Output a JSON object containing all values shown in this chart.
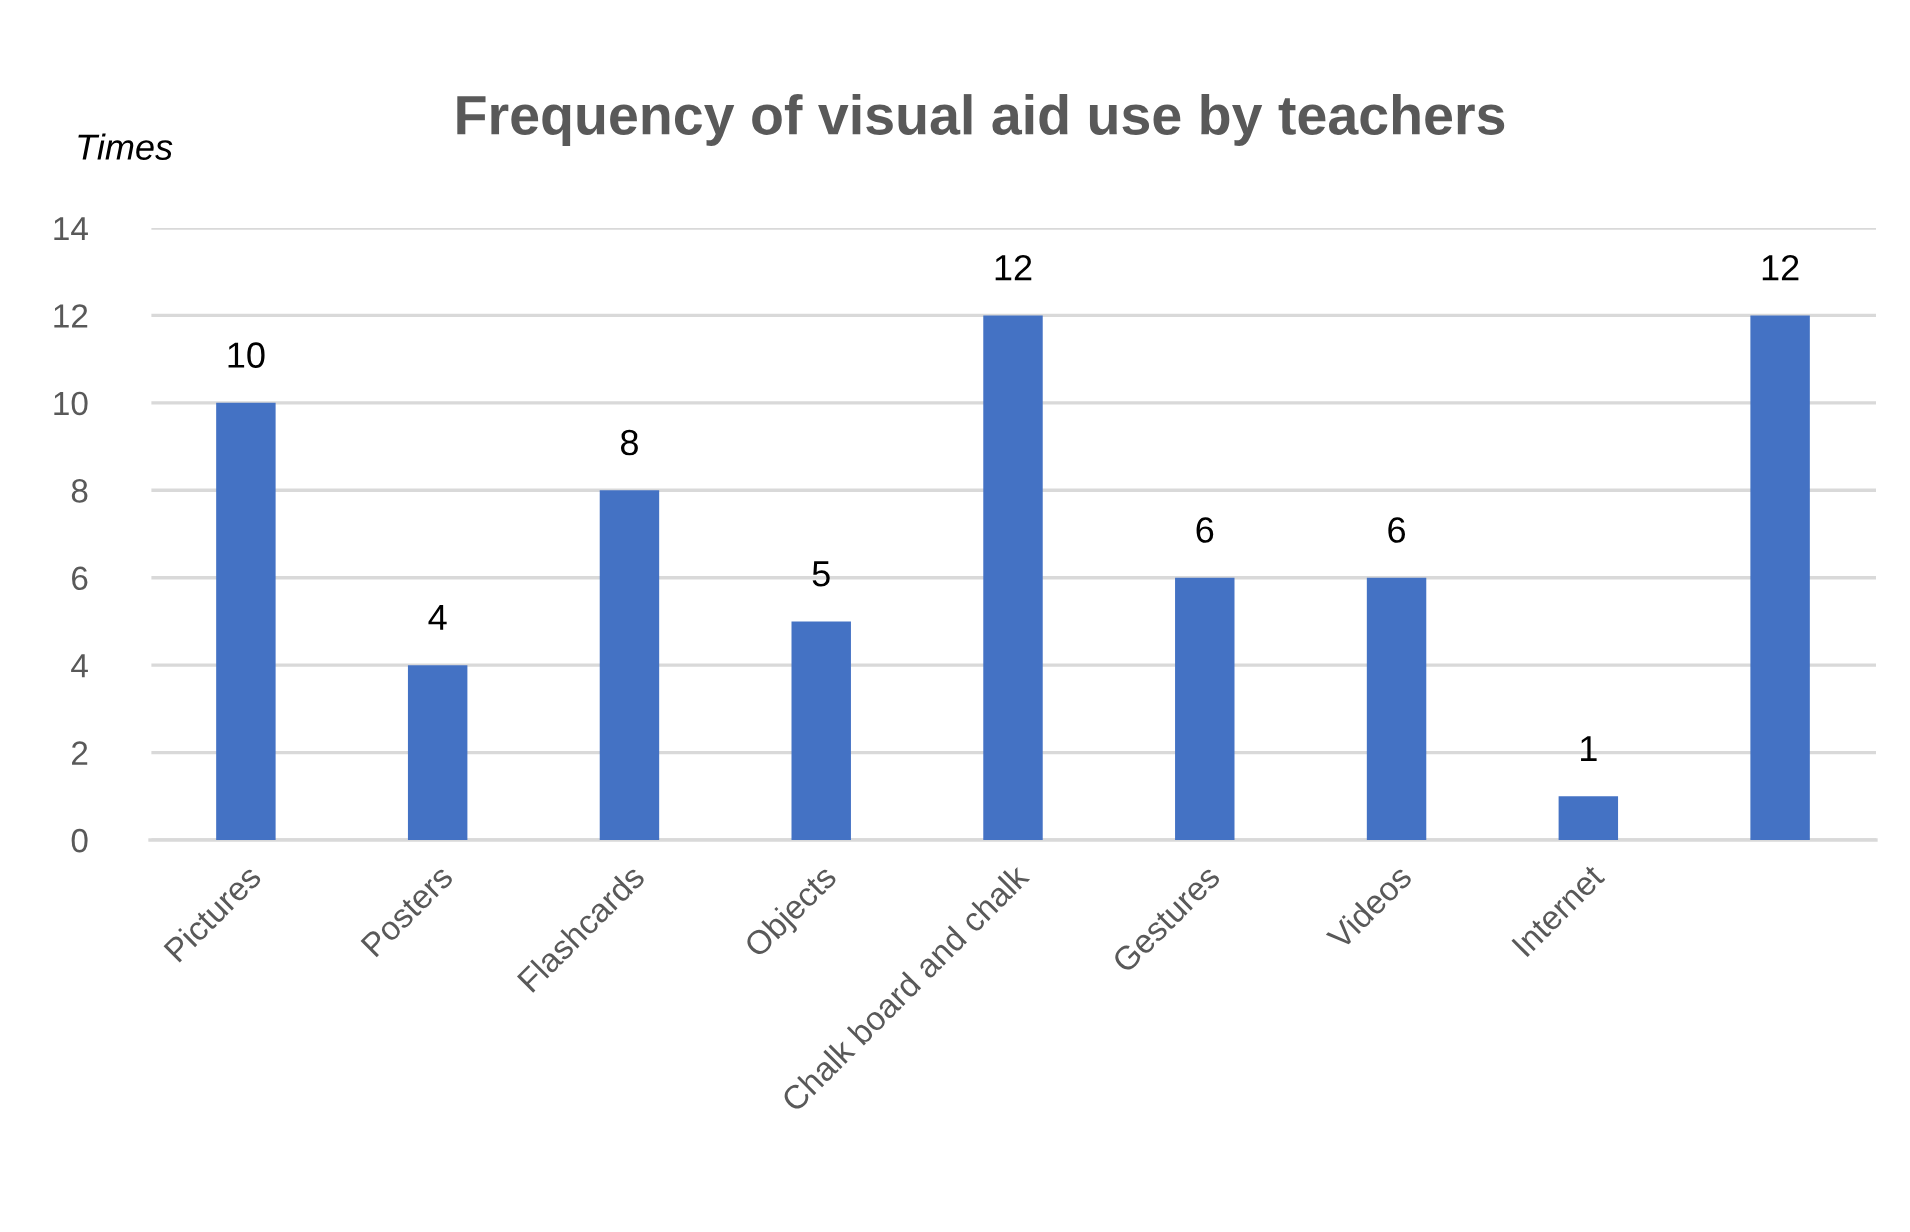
{
  "chart_data": {
    "type": "bar",
    "title": "Frequency of visual aid use by teachers",
    "ylabel": "Times",
    "categories": [
      "Pictures",
      "Posters",
      "Flashcards",
      "Objects",
      "Chalk board and chalk",
      "Gestures",
      "Videos",
      "Internet",
      null
    ],
    "values": [
      10,
      4,
      8,
      5,
      12,
      6,
      6,
      1,
      12
    ],
    "color": "#4472c4",
    "ylim": [
      0,
      14
    ],
    "yticks": [
      0,
      2,
      4,
      6,
      8,
      10,
      12,
      14
    ],
    "grid": "y",
    "data_labels": true
  }
}
